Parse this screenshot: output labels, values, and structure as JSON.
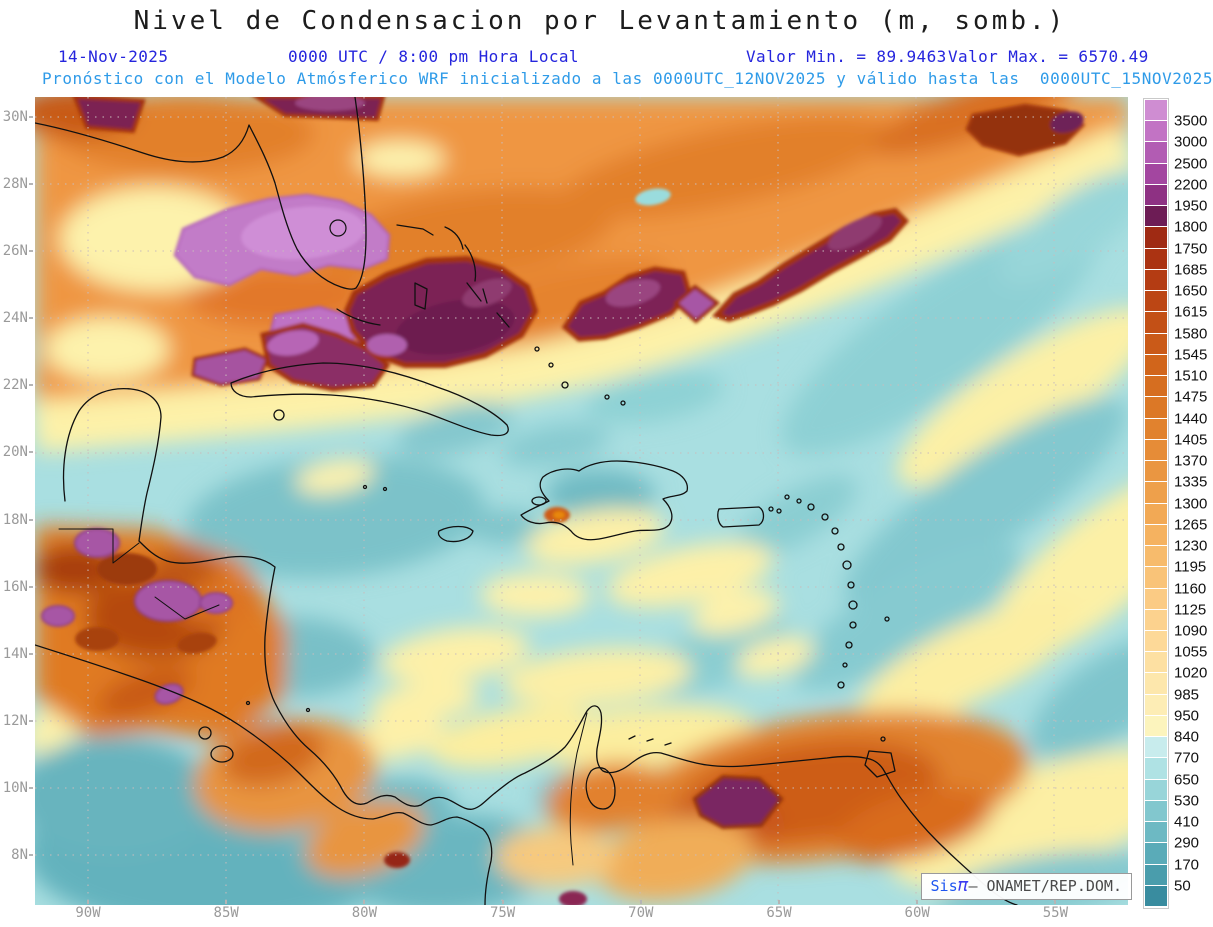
{
  "title": "Nivel de Condensacion por Levantamiento (m, somb.)",
  "header": {
    "date": "14-Nov-2025",
    "time": "0000 UTC / 8:00 pm Hora Local",
    "min_label": "Valor Min. = 89.9463",
    "max_label": "Valor Max. = 6570.49",
    "forecast_line": "Pronóstico con el Modelo Atmósferico WRF inicializado a las 0000UTC_12NOV2025 y válido hasta las  0000UTC_15NOV2025"
  },
  "map": {
    "lat_labels": [
      "30N",
      "28N",
      "26N",
      "24N",
      "22N",
      "20N",
      "18N",
      "16N",
      "14N",
      "12N",
      "10N",
      "8N"
    ],
    "lon_labels": [
      "90W",
      "85W",
      "80W",
      "75W",
      "70W",
      "65W",
      "60W",
      "55W"
    ]
  },
  "colorbar": {
    "unit": "m",
    "labels": [
      "3500",
      "3000",
      "2500",
      "2200",
      "1950",
      "1800",
      "1750",
      "1685",
      "1650",
      "1615",
      "1580",
      "1545",
      "1510",
      "1475",
      "1440",
      "1405",
      "1370",
      "1335",
      "1300",
      "1265",
      "1230",
      "1195",
      "1160",
      "1125",
      "1090",
      "1055",
      "1020",
      "985",
      "950",
      "840",
      "770",
      "650",
      "530",
      "410",
      "290",
      "170",
      "50"
    ],
    "colors": [
      "#cf8dd2",
      "#c273c4",
      "#b25cb3",
      "#a346a0",
      "#8e3183",
      "#6d1c55",
      "#9f2a13",
      "#ab3312",
      "#b43c13",
      "#bc4614",
      "#c35016",
      "#ca5a18",
      "#d1651b",
      "#d66e20",
      "#dc7826",
      "#e1822e",
      "#e68c37",
      "#ea9641",
      "#eea04b",
      "#f2a955",
      "#f5b260",
      "#f7bb6c",
      "#f9c378",
      "#fbcb84",
      "#fcd28e",
      "#fdd998",
      "#fde0a2",
      "#fde7ac",
      "#fdedb5",
      "#fcf4bd",
      "#c8eced",
      "#afe2e4",
      "#98d5d9",
      "#82c7ce",
      "#6db9c3",
      "#5aabb8",
      "#4a9dac",
      "#398c9f"
    ]
  },
  "attribution": {
    "app": "Sis",
    "pi": "π",
    "separator": "– ",
    "org": "ONAMET/REP.DOM."
  }
}
